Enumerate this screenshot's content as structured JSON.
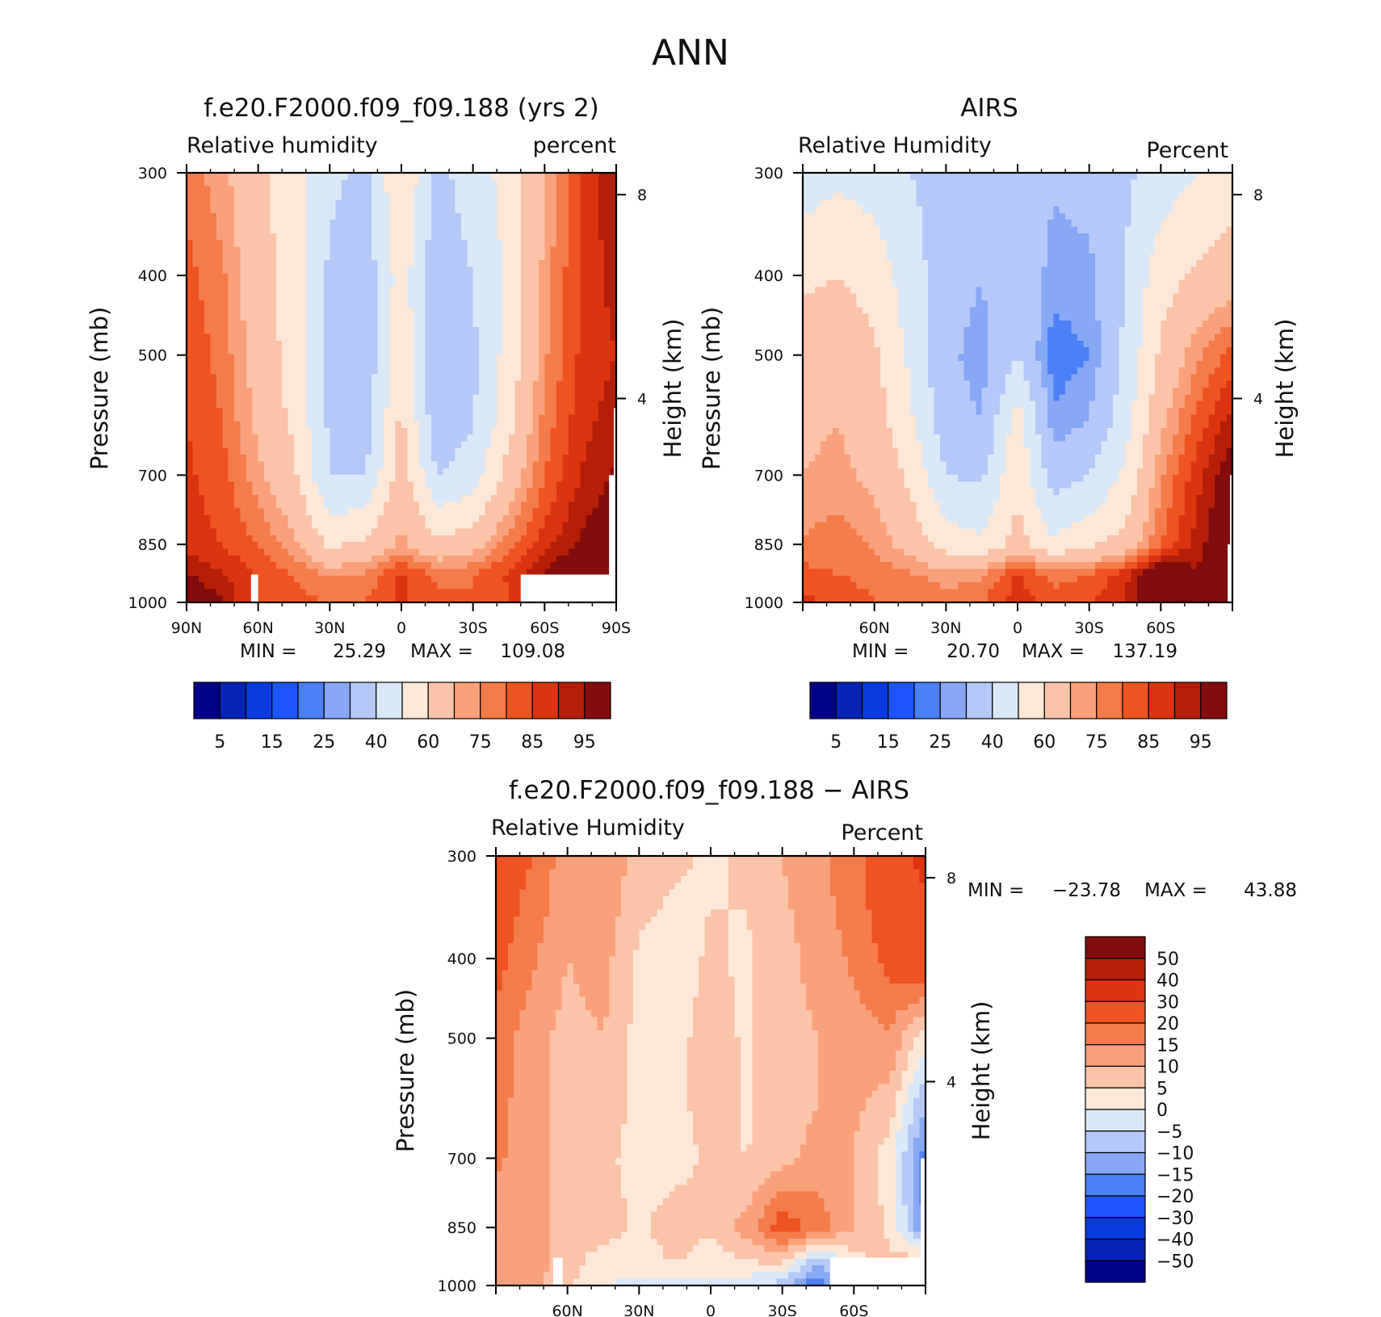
{
  "figure": {
    "title": "ANN"
  },
  "colors": {
    "abs_palette": [
      "#000087",
      "#0324b4",
      "#0a3ae0",
      "#1e55ff",
      "#4d7ff7",
      "#86a8f5",
      "#b4c9f7",
      "#d9e9f9",
      "#fde7d6",
      "#fbc3a7",
      "#f9a07d",
      "#f57b4a",
      "#ee5322",
      "#db3411",
      "#b51e08",
      "#830c0c"
    ],
    "diff_palette": [
      "#000087",
      "#0324b4",
      "#0a3ae0",
      "#1e55ff",
      "#4d7ff7",
      "#86a8f5",
      "#b4c9f7",
      "#d9e9f9",
      "#fde7d6",
      "#fbc3a7",
      "#f9a07d",
      "#f57b4a",
      "#ee5322",
      "#db3411",
      "#b51e08",
      "#830c0c"
    ],
    "missing": "#ffffff"
  },
  "chart_data": [
    {
      "id": "model",
      "type": "heatmap",
      "title": "f.e20.F2000.f09_f09.188 (yrs 2)",
      "left_label": "Relative humidity",
      "right_label": "percent",
      "ylabel": "Pressure (mb)",
      "y2label": "Height (km)",
      "x_ticks": [
        "90N",
        "60N",
        "30N",
        "0",
        "30S",
        "60S",
        "90S"
      ],
      "y_ticks": [
        "300",
        "400",
        "500",
        "700",
        "850",
        "1000"
      ],
      "y2_ticks": [
        "8",
        "4"
      ],
      "xlim": [
        90,
        -90
      ],
      "ylim": [
        1000,
        300
      ],
      "stats": {
        "min_label": "MIN =",
        "min": "25.29",
        "max_label": "MAX =",
        "max": "109.08"
      },
      "colorbar_ticks": [
        "5",
        "15",
        "25",
        "40",
        "60",
        "75",
        "85",
        "95"
      ],
      "levels": [
        5,
        10,
        15,
        20,
        25,
        30,
        40,
        50,
        60,
        70,
        75,
        80,
        85,
        90,
        95
      ],
      "field": {
        "lats": [
          90,
          75,
          60,
          45,
          30,
          15,
          0,
          -15,
          -30,
          -45,
          -60,
          -75,
          -90
        ],
        "pressures": [
          300,
          400,
          500,
          600,
          700,
          850,
          925,
          1000
        ],
        "values": [
          [
            78,
            72,
            62,
            55,
            42,
            38,
            60,
            37,
            45,
            54,
            70,
            85,
            95
          ],
          [
            82,
            76,
            64,
            56,
            38,
            34,
            55,
            33,
            40,
            52,
            72,
            86,
            92
          ],
          [
            84,
            78,
            66,
            56,
            37,
            33,
            58,
            30,
            38,
            54,
            74,
            86,
            90
          ],
          [
            85,
            80,
            68,
            58,
            38,
            35,
            62,
            33,
            39,
            57,
            77,
            88,
            93
          ],
          [
            86,
            82,
            72,
            62,
            40,
            40,
            66,
            40,
            45,
            64,
            80,
            90,
            96
          ],
          [
            88,
            85,
            80,
            72,
            58,
            62,
            72,
            62,
            66,
            78,
            88,
            96,
            102
          ],
          [
            96,
            90,
            84,
            80,
            74,
            76,
            86,
            78,
            80,
            86,
            96,
            104,
            108
          ],
          [
            102,
            96,
            82,
            82,
            80,
            80,
            86,
            82,
            80,
            84,
            96,
            104,
            108
          ]
        ],
        "missing_regions": [
          {
            "lat_from": 63,
            "lat_to": 60,
            "p_from": 925,
            "p_to": 1000
          },
          {
            "lat_from": -50,
            "lat_to": -90,
            "p_from": 925,
            "p_to": 1000
          },
          {
            "lat_from": -87,
            "lat_to": -90,
            "p_from": 700,
            "p_to": 925
          },
          {
            "lat_from": -89,
            "lat_to": -90,
            "p_from": 580,
            "p_to": 700
          }
        ]
      }
    },
    {
      "id": "obs",
      "type": "heatmap",
      "title": "AIRS",
      "left_label": "Relative Humidity",
      "right_label": "Percent",
      "ylabel": "Pressure (mb)",
      "y2label": "Height (km)",
      "x_ticks": [
        "60N",
        "30N",
        "0",
        "30S",
        "60S"
      ],
      "y_ticks": [
        "300",
        "400",
        "500",
        "700",
        "850",
        "1000"
      ],
      "y2_ticks": [
        "8",
        "4"
      ],
      "xlim": [
        90,
        -90
      ],
      "ylim": [
        1000,
        300
      ],
      "stats": {
        "min_label": "MIN =",
        "min": "20.70",
        "max_label": "MAX =",
        "max": "137.19"
      },
      "colorbar_ticks": [
        "5",
        "15",
        "25",
        "40",
        "60",
        "75",
        "85",
        "95"
      ],
      "levels": [
        5,
        10,
        15,
        20,
        25,
        30,
        40,
        50,
        60,
        70,
        75,
        80,
        85,
        90,
        95
      ],
      "field": {
        "lats": [
          90,
          75,
          60,
          45,
          30,
          15,
          0,
          -15,
          -30,
          -45,
          -60,
          -75,
          -90
        ],
        "pressures": [
          300,
          400,
          500,
          600,
          700,
          850,
          925,
          1000
        ],
        "values": [
          [
            45,
            48,
            46,
            40,
            36,
            33,
            36,
            31,
            33,
            38,
            45,
            50,
            55
          ],
          [
            58,
            60,
            56,
            45,
            34,
            30,
            38,
            27,
            28,
            40,
            56,
            62,
            66
          ],
          [
            66,
            68,
            62,
            48,
            32,
            27,
            40,
            22,
            25,
            42,
            62,
            74,
            82
          ],
          [
            68,
            70,
            65,
            52,
            34,
            30,
            55,
            26,
            30,
            46,
            68,
            82,
            92
          ],
          [
            70,
            72,
            68,
            58,
            40,
            38,
            58,
            35,
            40,
            52,
            74,
            88,
            100
          ],
          [
            76,
            78,
            74,
            66,
            56,
            52,
            64,
            52,
            58,
            64,
            80,
            92,
            104
          ],
          [
            82,
            80,
            78,
            76,
            72,
            74,
            86,
            78,
            80,
            88,
            104,
            96,
            100
          ],
          [
            86,
            84,
            80,
            80,
            78,
            80,
            88,
            82,
            84,
            90,
            110,
            100,
            100
          ]
        ],
        "missing_regions": [
          {
            "lat_from": -88,
            "lat_to": -90,
            "p_from": 850,
            "p_to": 1000
          },
          {
            "lat_from": -89,
            "lat_to": -90,
            "p_from": 700,
            "p_to": 850
          }
        ]
      }
    },
    {
      "id": "diff",
      "type": "heatmap",
      "title": "f.e20.F2000.f09_f09.188 − AIRS",
      "left_label": "Relative Humidity",
      "right_label": "Percent",
      "ylabel": "Pressure (mb)",
      "y2label": "Height (km)",
      "x_ticks": [
        "60N",
        "30N",
        "0",
        "30S",
        "60S"
      ],
      "y_ticks": [
        "300",
        "400",
        "500",
        "700",
        "850",
        "1000"
      ],
      "y2_ticks": [
        "8",
        "4"
      ],
      "xlim": [
        90,
        -90
      ],
      "ylim": [
        1000,
        300
      ],
      "stats": {
        "min_label": "MIN =",
        "min": "−23.78",
        "max_label": "MAX =",
        "max": "43.88"
      },
      "colorbar_ticks": [
        "50",
        "40",
        "30",
        "20",
        "15",
        "10",
        "5",
        "0",
        "−5",
        "−10",
        "−15",
        "−20",
        "−30",
        "−40",
        "−50"
      ],
      "levels": [
        -50,
        -40,
        -30,
        -20,
        -15,
        -10,
        -5,
        0,
        5,
        10,
        15,
        20,
        30,
        40,
        50
      ],
      "field": {
        "lats": [
          90,
          75,
          60,
          45,
          30,
          15,
          0,
          -15,
          -30,
          -45,
          -60,
          -75,
          -90
        ],
        "pressures": [
          300,
          400,
          500,
          600,
          700,
          850,
          925,
          1000
        ],
        "values": [
          [
            24,
            20,
            12,
            14,
            8,
            6,
            4,
            6,
            10,
            14,
            18,
            26,
            32
          ],
          [
            22,
            16,
            10,
            12,
            4,
            2,
            6,
            4,
            8,
            12,
            16,
            22,
            26
          ],
          [
            18,
            12,
            8,
            10,
            3,
            3,
            8,
            4,
            8,
            10,
            12,
            14,
            2
          ],
          [
            17,
            12,
            8,
            8,
            4,
            3,
            8,
            4,
            8,
            10,
            11,
            8,
            -10
          ],
          [
            16,
            12,
            8,
            7,
            2,
            3,
            6,
            5,
            8,
            12,
            10,
            2,
            -18
          ],
          [
            12,
            10,
            10,
            8,
            4,
            8,
            6,
            12,
            24,
            18,
            10,
            4,
            -16
          ],
          [
            12,
            12,
            8,
            2,
            2,
            6,
            2,
            6,
            8,
            -8,
            4,
            6,
            6
          ],
          [
            14,
            12,
            6,
            0,
            -1,
            -2,
            -1,
            -3,
            -8,
            -20,
            0,
            4,
            6
          ]
        ],
        "missing_regions": [
          {
            "lat_from": 66,
            "lat_to": 62,
            "p_from": 925,
            "p_to": 1000
          },
          {
            "lat_from": -50,
            "lat_to": -90,
            "p_from": 925,
            "p_to": 1000
          },
          {
            "lat_from": -88,
            "lat_to": -90,
            "p_from": 700,
            "p_to": 925
          }
        ]
      }
    }
  ]
}
